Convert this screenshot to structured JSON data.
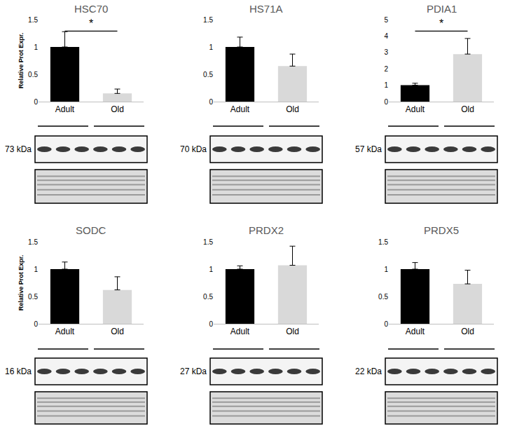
{
  "chart_data": [
    {
      "type": "bar",
      "title": "HSC70",
      "y_label": "Relative Prot Expr.",
      "categories": [
        "Adult",
        "Old"
      ],
      "values": [
        1.0,
        0.15
      ],
      "errors": [
        0.28,
        0.08
      ],
      "colors": [
        "#000000",
        "#d9d9d9"
      ],
      "ylim": [
        0,
        1.5
      ],
      "yticks": [
        0,
        0.5,
        1,
        1.5
      ],
      "significance": "*",
      "band_label": "73 kDa"
    },
    {
      "type": "bar",
      "title": "HS71A",
      "categories": [
        "Adult",
        "Old"
      ],
      "values": [
        1.0,
        0.65
      ],
      "errors": [
        0.18,
        0.22
      ],
      "colors": [
        "#000000",
        "#d9d9d9"
      ],
      "ylim": [
        0,
        1.5
      ],
      "yticks": [
        0,
        0.5,
        1,
        1.5
      ],
      "band_label": "70 kDa"
    },
    {
      "type": "bar",
      "title": "PDIA1",
      "categories": [
        "Adult",
        "Old"
      ],
      "values": [
        1.0,
        2.9
      ],
      "errors": [
        0.12,
        0.95
      ],
      "colors": [
        "#000000",
        "#d9d9d9"
      ],
      "ylim": [
        0,
        5
      ],
      "yticks": [
        0,
        1,
        2,
        3,
        4,
        5
      ],
      "significance": "*",
      "band_label": "57 kDa"
    },
    {
      "type": "bar",
      "title": "SODC",
      "y_label": "Relative Prot Expr.",
      "categories": [
        "Adult",
        "Old"
      ],
      "values": [
        1.0,
        0.62
      ],
      "errors": [
        0.13,
        0.24
      ],
      "colors": [
        "#000000",
        "#d9d9d9"
      ],
      "ylim": [
        0,
        1.5
      ],
      "yticks": [
        0,
        0.5,
        1,
        1.5
      ],
      "band_label": "16 kDa"
    },
    {
      "type": "bar",
      "title": "PRDX2",
      "categories": [
        "Adult",
        "Old"
      ],
      "values": [
        1.0,
        1.07
      ],
      "errors": [
        0.06,
        0.35
      ],
      "colors": [
        "#000000",
        "#d9d9d9"
      ],
      "ylim": [
        0,
        1.5
      ],
      "yticks": [
        0,
        0.5,
        1,
        1.5
      ],
      "band_label": "27 kDa"
    },
    {
      "type": "bar",
      "title": "PRDX5",
      "categories": [
        "Adult",
        "Old"
      ],
      "values": [
        1.0,
        0.73
      ],
      "errors": [
        0.12,
        0.25
      ],
      "colors": [
        "#000000",
        "#d9d9d9"
      ],
      "ylim": [
        0,
        1.5
      ],
      "yticks": [
        0,
        0.5,
        1,
        1.5
      ],
      "band_label": "22 kDa"
    }
  ]
}
